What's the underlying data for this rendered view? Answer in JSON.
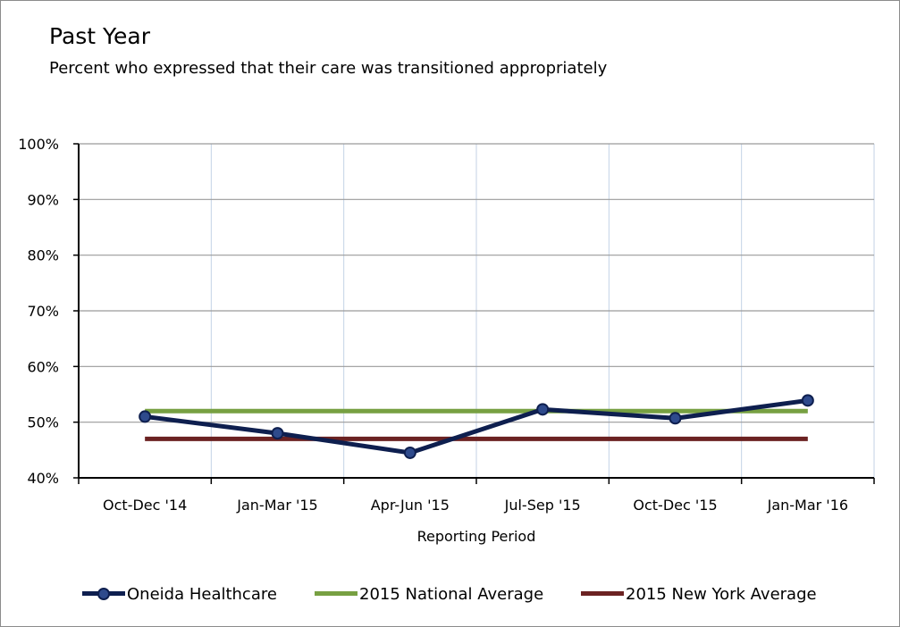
{
  "title": "Past Year",
  "subtitle": "Percent who expressed that their care was transitioned appropriately",
  "chart_data": {
    "type": "line",
    "title": "Past Year",
    "subtitle": "Percent who expressed that their care was transitioned appropriately",
    "xlabel": "Reporting Period",
    "ylabel": "",
    "categories": [
      "Oct-Dec '14",
      "Jan-Mar '15",
      "Apr-Jun '15",
      "Jul-Sep '15",
      "Oct-Dec '15",
      "Jan-Mar '16"
    ],
    "ylim": [
      40,
      100
    ],
    "yticks": [
      40,
      50,
      60,
      70,
      80,
      90,
      100
    ],
    "ytick_labels": [
      "40%",
      "50%",
      "60%",
      "70%",
      "80%",
      "90%",
      "100%"
    ],
    "grid": true,
    "legend_position": "bottom",
    "series": [
      {
        "name": "Oneida Healthcare",
        "values": [
          51,
          48,
          44.5,
          52.3,
          50.7,
          53.9
        ],
        "color": "#0e1f4f",
        "marker": "circle"
      },
      {
        "name": "2015 National Average",
        "values": [
          52,
          52,
          52,
          52,
          52,
          52
        ],
        "color": "#77a042",
        "marker": "none"
      },
      {
        "name": "2015 New York Average",
        "values": [
          47,
          47,
          47,
          47,
          47,
          47
        ],
        "color": "#6b2222",
        "marker": "none"
      }
    ]
  }
}
